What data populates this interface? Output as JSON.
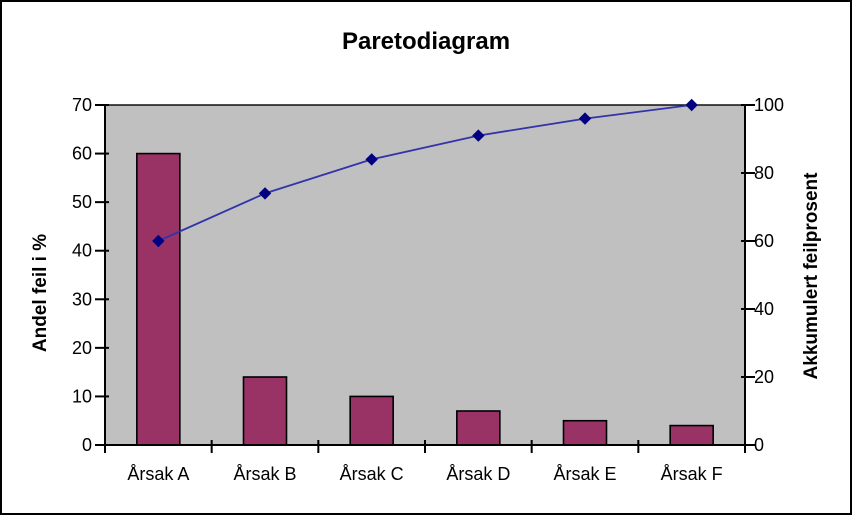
{
  "window": {
    "background_color": "#FFFFFF",
    "border_color": "#000000"
  },
  "chart_data": {
    "type": "pareto-combo",
    "title": "Paretodiagram",
    "categories": [
      "Årsak A",
      "Årsak B",
      "Årsak C",
      "Årsak D",
      "Årsak E",
      "Årsak F"
    ],
    "series": [
      {
        "name": "Andel feil i %",
        "type": "bar",
        "axis": "left",
        "values": [
          60,
          14,
          10,
          7,
          5,
          4
        ],
        "fill_color": "#993366",
        "border_color": "#000000"
      },
      {
        "name": "Akkumulert feilprosent",
        "type": "line",
        "axis": "right",
        "values": [
          60,
          74,
          84,
          91,
          96,
          100
        ],
        "line_color": "#3333AA",
        "marker": "diamond",
        "marker_color": "#000080"
      }
    ],
    "axes": {
      "left": {
        "label": "Andel feil i %",
        "min": 0,
        "max": 70,
        "ticks": [
          0,
          10,
          20,
          30,
          40,
          50,
          60,
          70
        ]
      },
      "right": {
        "label": "Akkumulert feilprosent",
        "min": 0,
        "max": 100,
        "ticks": [
          0,
          20,
          40,
          60,
          80,
          100
        ]
      }
    },
    "plot_background": "#C0C0C0",
    "axis_line_color": "#000000",
    "grid": false,
    "legend": false
  }
}
